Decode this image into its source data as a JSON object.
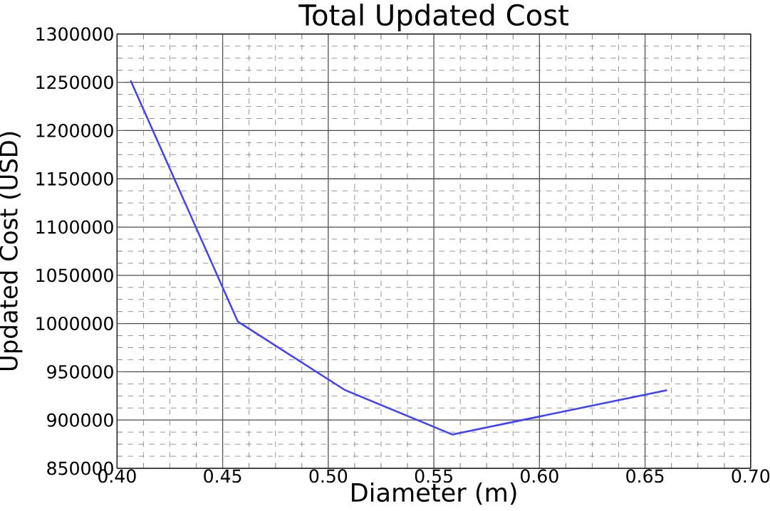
{
  "chart_data": {
    "type": "line",
    "title": "Total Updated Cost",
    "xlabel": "Diameter (m)",
    "ylabel": "Updated Cost (USD)",
    "x": [
      0.4064,
      0.4572,
      0.508,
      0.5588,
      0.6604
    ],
    "series": [
      {
        "color": "#4040ff",
        "values": [
          1252000,
          1002000,
          931000,
          885000,
          931000
        ]
      }
    ],
    "xlim": [
      0.4,
      0.7
    ],
    "ylim": [
      850000,
      1300000
    ],
    "xticks": [
      {
        "value": 0.4,
        "label": "0.40"
      },
      {
        "value": 0.45,
        "label": "0.45"
      },
      {
        "value": 0.5,
        "label": "0.50"
      },
      {
        "value": 0.55,
        "label": "0.55"
      },
      {
        "value": 0.6,
        "label": "0.60"
      },
      {
        "value": 0.65,
        "label": "0.65"
      },
      {
        "value": 0.7,
        "label": "0.70"
      }
    ],
    "yticks": [
      850000,
      900000,
      950000,
      1000000,
      1050000,
      1100000,
      1150000,
      1200000,
      1250000,
      1300000
    ],
    "grid": true,
    "marker": "none",
    "line_style": "solid"
  }
}
